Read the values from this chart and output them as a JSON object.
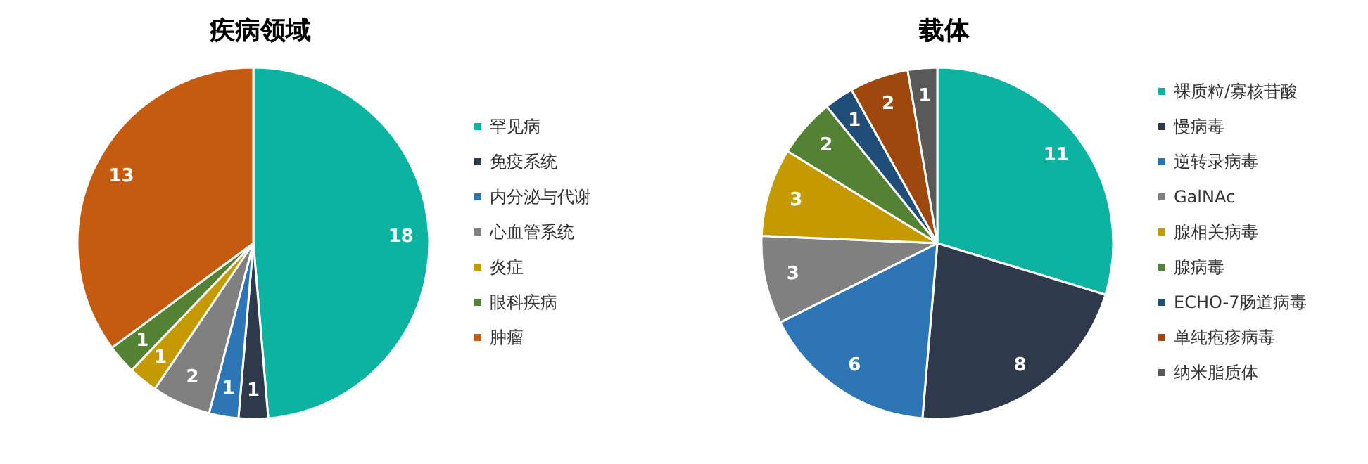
{
  "chart_data": [
    {
      "type": "pie",
      "title": "疾病领域",
      "categories": [
        "罕见病",
        "免疫系统",
        "内分泌与代谢",
        "心血管系统",
        "炎症",
        "眼科疾病",
        "肿瘤"
      ],
      "values": [
        18,
        1,
        1,
        2,
        1,
        1,
        13
      ],
      "colors": [
        "#0bb3a0",
        "#2e3a4b",
        "#2e75b6",
        "#808080",
        "#c49a00",
        "#548235",
        "#c55a11"
      ],
      "data_labels": true,
      "legend": "right"
    },
    {
      "type": "pie",
      "title": "载体",
      "categories": [
        "裸质粒/寡核苷酸",
        "慢病毒",
        "逆转录病毒",
        "GalNAc",
        "腺相关病毒",
        "腺病毒",
        "ECHO-7肠道病毒",
        "单纯疱疹病毒",
        "纳米脂质体"
      ],
      "values": [
        11,
        8,
        6,
        3,
        3,
        2,
        1,
        2,
        1
      ],
      "colors": [
        "#0bb3a0",
        "#2e3a4b",
        "#2e75b6",
        "#808080",
        "#c49a00",
        "#548235",
        "#1f4e79",
        "#9e480e",
        "#595959"
      ],
      "data_labels": true,
      "legend": "right"
    }
  ]
}
